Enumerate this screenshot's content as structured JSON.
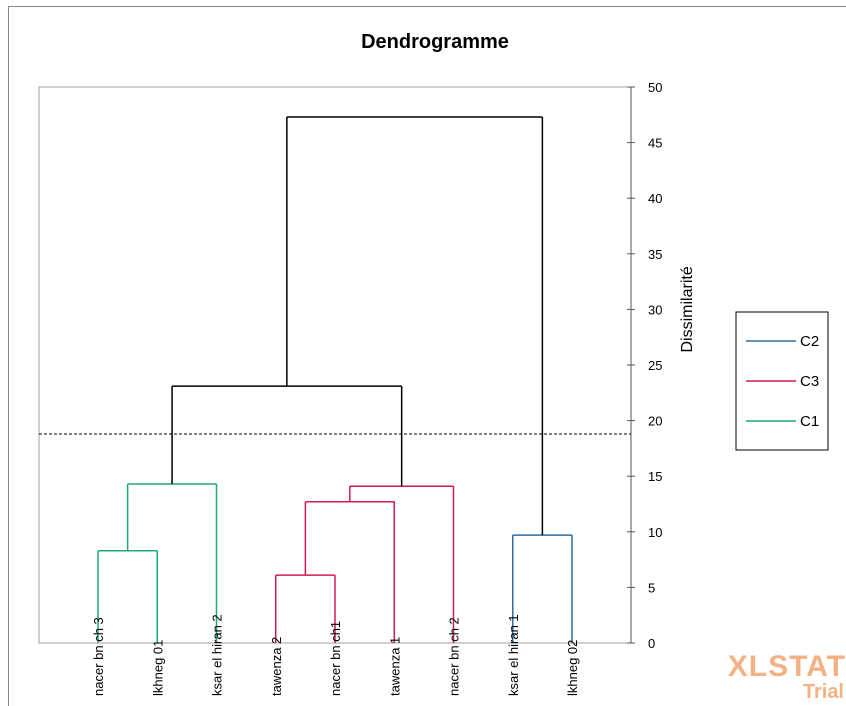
{
  "chart_data": {
    "type": "dendrogram",
    "title": "Dendrogramme",
    "ylabel": "Dissimilarité",
    "ylim": [
      0,
      50
    ],
    "yticks": [
      0,
      5,
      10,
      15,
      20,
      25,
      30,
      35,
      40,
      45,
      50
    ],
    "y_axis_position": "right",
    "truncation_line": 18.8,
    "leaves": [
      "nacer bn ch 3",
      "lkhneg 01",
      "ksar el hiran 2",
      "tawenza 2",
      "nacer bn ch1",
      "tawenza 1",
      "nacer bn ch 2",
      "ksar el hiran 1",
      "lkhneg 02"
    ],
    "merges": [
      {
        "id": "m1",
        "left": 0,
        "right": 1,
        "height": 8.3,
        "cluster": "C1"
      },
      {
        "id": "m2",
        "left": "m1",
        "right": 2,
        "height": 14.3,
        "cluster": "C1"
      },
      {
        "id": "m3",
        "left": 3,
        "right": 4,
        "height": 6.1,
        "cluster": "C3"
      },
      {
        "id": "m4",
        "left": "m3",
        "right": 5,
        "height": 12.7,
        "cluster": "C3"
      },
      {
        "id": "m5",
        "left": "m4",
        "right": 6,
        "height": 14.1,
        "cluster": "C3"
      },
      {
        "id": "m6",
        "left": 7,
        "right": 8,
        "height": 9.7,
        "cluster": "C2"
      },
      {
        "id": "m7",
        "left": "m2",
        "right": "m5",
        "height": 23.1,
        "cluster": null
      },
      {
        "id": "m8",
        "left": "m7",
        "right": "m6",
        "height": 47.3,
        "cluster": null
      }
    ],
    "legend": {
      "placement": "right",
      "entries": [
        {
          "name": "C2",
          "color": "#2e6e9e"
        },
        {
          "name": "C3",
          "color": "#d01c51"
        },
        {
          "name": "C1",
          "color": "#1ea87f"
        }
      ]
    },
    "link_color": "#000000"
  },
  "watermark": {
    "brand": "XLSTAT",
    "edition": "Trial"
  }
}
